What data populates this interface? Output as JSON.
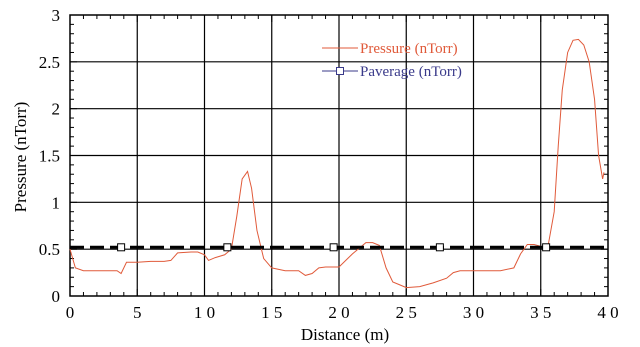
{
  "chart_data": {
    "type": "line",
    "title": "",
    "xlabel": "Distance (m)",
    "ylabel": "Pressure (nTorr)",
    "xlim": [
      0,
      40
    ],
    "ylim": [
      0,
      3
    ],
    "grid": true,
    "legend_position": "top-right",
    "x_ticks": [
      0,
      5,
      10,
      15,
      20,
      25,
      30,
      35,
      40
    ],
    "x_tick_labels": [
      "0",
      "5",
      "1 0",
      "1 5",
      "2 0",
      "2 5",
      "3 0",
      "3 5",
      "4 0"
    ],
    "y_ticks": [
      0,
      0.5,
      1,
      1.5,
      2,
      2.5,
      3
    ],
    "y_tick_labels": [
      "0",
      "0.5",
      "1",
      "1.5",
      "2",
      "2.5",
      "3"
    ],
    "series": [
      {
        "name": "Pressure (nTorr)",
        "color": "#e05a3a",
        "style": "solid",
        "x": [
          0,
          0.4,
          1,
          2,
          3,
          3.5,
          3.8,
          4.2,
          5,
          6,
          7,
          7.5,
          8,
          9,
          9.5,
          10,
          10.3,
          10.8,
          11.5,
          12,
          12.4,
          12.8,
          13.2,
          13.5,
          13.9,
          14.4,
          15,
          16,
          17,
          17.5,
          18,
          18.5,
          19,
          20,
          21,
          22,
          22.5,
          23,
          23.5,
          24,
          24.5,
          25,
          26,
          27,
          28,
          28.5,
          29,
          30,
          31,
          32,
          33,
          33.5,
          34,
          34.5,
          35,
          35.5,
          36,
          36.3,
          36.6,
          37,
          37.4,
          37.8,
          38.2,
          38.6,
          39,
          39.3,
          39.6,
          39.7
        ],
        "y": [
          0.5,
          0.3,
          0.27,
          0.27,
          0.27,
          0.27,
          0.24,
          0.36,
          0.36,
          0.37,
          0.37,
          0.38,
          0.46,
          0.47,
          0.47,
          0.44,
          0.38,
          0.41,
          0.44,
          0.5,
          0.85,
          1.25,
          1.33,
          1.15,
          0.7,
          0.4,
          0.3,
          0.27,
          0.27,
          0.22,
          0.24,
          0.3,
          0.31,
          0.31,
          0.45,
          0.57,
          0.57,
          0.54,
          0.3,
          0.15,
          0.12,
          0.09,
          0.1,
          0.14,
          0.19,
          0.25,
          0.27,
          0.27,
          0.27,
          0.27,
          0.3,
          0.45,
          0.55,
          0.55,
          0.53,
          0.5,
          0.9,
          1.6,
          2.2,
          2.6,
          2.73,
          2.74,
          2.68,
          2.5,
          2.1,
          1.5,
          1.25,
          1.32
        ]
      },
      {
        "name": "Paverage (nTorr)",
        "color": "#000000",
        "style": "dashed",
        "marker": "square",
        "x": [
          0,
          40
        ],
        "y": [
          0.52,
          0.52
        ],
        "marker_x": [
          3.8,
          11.7,
          19.6,
          27.5,
          35.4
        ]
      }
    ]
  }
}
